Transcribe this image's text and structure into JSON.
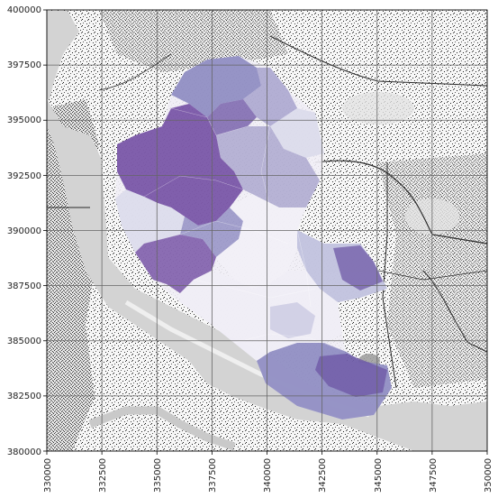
{
  "map": {
    "x_axis": {
      "range": [
        330000,
        350000
      ],
      "ticks": [
        330000,
        332500,
        335000,
        337500,
        340000,
        342500,
        345000,
        347500,
        350000
      ],
      "tick_labels": [
        "330000",
        "332500",
        "335000",
        "337500",
        "340000",
        "342500",
        "345000",
        "347500",
        "350000"
      ],
      "label_rotation": "vertical"
    },
    "y_axis": {
      "range": [
        380000,
        400000
      ],
      "ticks": [
        380000,
        382500,
        385000,
        387500,
        390000,
        392500,
        395000,
        397500,
        400000
      ],
      "tick_labels": [
        "380000",
        "382500",
        "385000",
        "387500",
        "390000",
        "392500",
        "395000",
        "397500",
        "400000"
      ]
    },
    "grid": true,
    "basemap": "greyscale street and building map",
    "overlay": "choropleth of small areas in purple shades (light to dark)",
    "colors": {
      "water": "#d3d3d3",
      "land": "#f7f7f7",
      "urban_texture": "#1a1a1a",
      "grid": "#666666",
      "purple_light": "#efedf5",
      "purple_mid": "#9e9ac8",
      "purple_dark": "#54278f"
    }
  }
}
